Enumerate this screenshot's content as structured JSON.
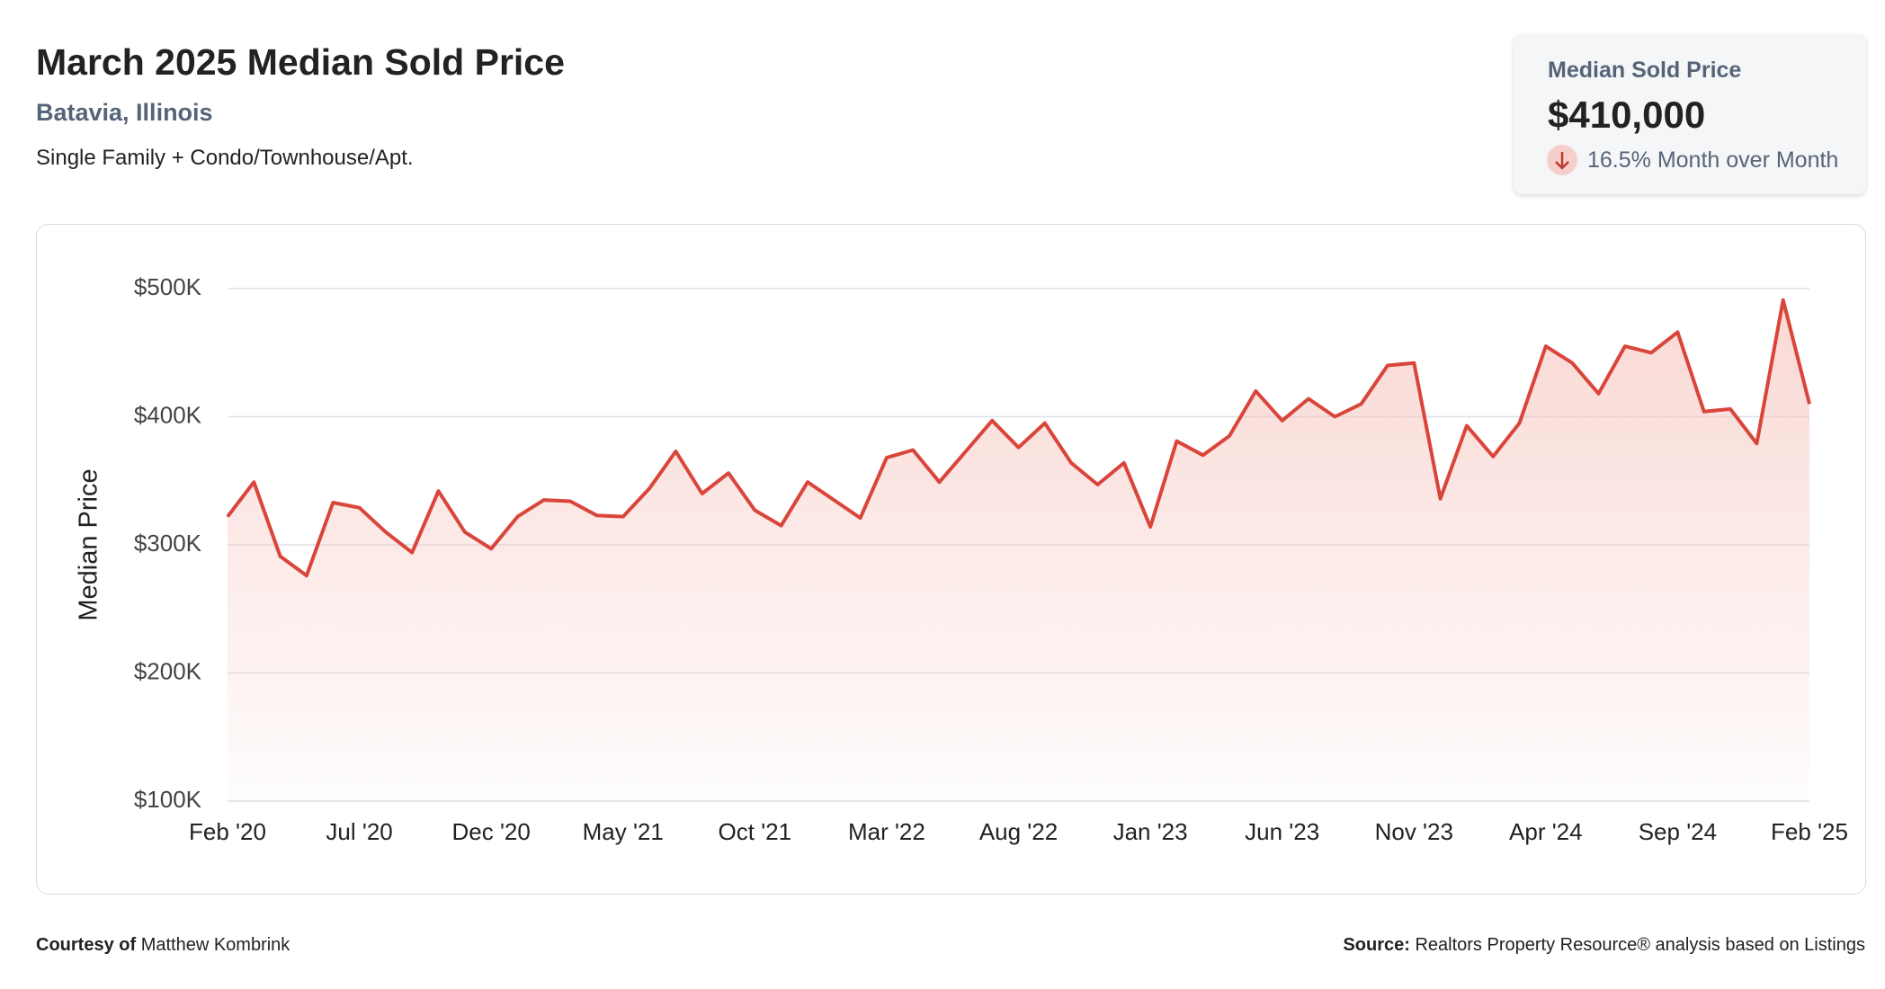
{
  "header": {
    "title": "March 2025 Median Sold Price",
    "subtitle": "Batavia, Illinois",
    "description": "Single Family + Condo/Townhouse/Apt."
  },
  "stat_card": {
    "label": "Median Sold Price",
    "value": "$410,000",
    "change": "16.5% Month over Month"
  },
  "chart_data": {
    "type": "line",
    "y_label": "Median Price",
    "color": "#d9453a",
    "grid": true,
    "categories": [
      "Feb '20",
      null,
      null,
      null,
      null,
      "Jul '20",
      null,
      null,
      null,
      null,
      "Dec '20",
      null,
      null,
      null,
      null,
      "May '21",
      null,
      null,
      null,
      null,
      "Oct '21",
      null,
      null,
      null,
      null,
      "Mar '22",
      null,
      null,
      null,
      null,
      "Aug '22",
      null,
      null,
      null,
      null,
      "Jan '23",
      null,
      null,
      null,
      null,
      "Jun '23",
      null,
      null,
      null,
      null,
      "Nov '23",
      null,
      null,
      null,
      null,
      "Apr '24",
      null,
      null,
      null,
      null,
      "Sep '24",
      null,
      null,
      null,
      null,
      "Feb '25"
    ],
    "values": [
      322000,
      349000,
      291000,
      276000,
      333000,
      329000,
      310000,
      294000,
      342000,
      310000,
      297000,
      322000,
      335000,
      334000,
      323000,
      322000,
      344000,
      373000,
      340000,
      356000,
      327000,
      315000,
      349000,
      335000,
      321000,
      368000,
      374000,
      349000,
      373000,
      397000,
      376000,
      395000,
      364000,
      347000,
      364000,
      314000,
      381000,
      370000,
      385000,
      420000,
      397000,
      414000,
      400000,
      410000,
      440000,
      442000,
      336000,
      393000,
      369000,
      395000,
      455000,
      442000,
      418000,
      455000,
      450000,
      466000,
      404000,
      406000,
      379000,
      491000,
      410000
    ],
    "ylim": [
      100000,
      500000
    ],
    "yticks": [
      {
        "value": 100000,
        "label": "$100K"
      },
      {
        "value": 200000,
        "label": "$200K"
      },
      {
        "value": 300000,
        "label": "$300K"
      },
      {
        "value": 400000,
        "label": "$400K"
      },
      {
        "value": 500000,
        "label": "$500K"
      }
    ]
  },
  "footer": {
    "courtesy_label": "Courtesy of",
    "courtesy_name": "Matthew Kombrink",
    "source_label": "Source:",
    "source_text": "Realtors Property Resource® analysis based on Listings"
  }
}
